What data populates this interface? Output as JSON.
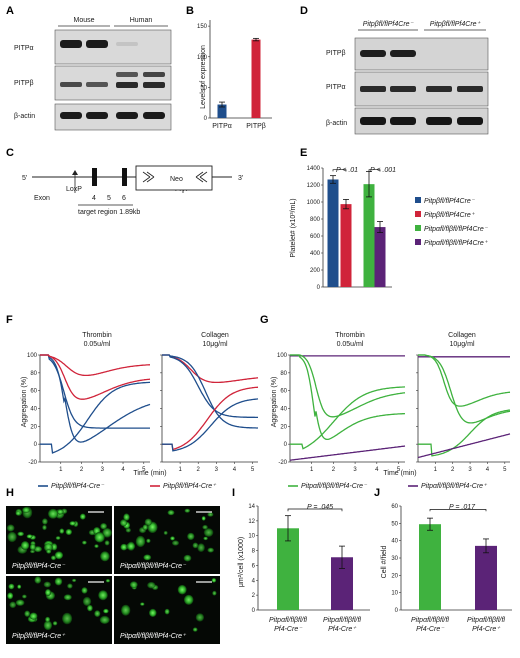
{
  "colors": {
    "wt_blue": "#1f4e8c",
    "ko_red": "#d0243a",
    "pitpa_green": "#3fb23f",
    "dko_purple": "#5b2377",
    "grid": "#9a9a9a",
    "axis": "#333333"
  },
  "panelA": {
    "label": "A",
    "groups": [
      "Mouse",
      "Human"
    ],
    "rows": [
      "PITPα",
      "PITPβ",
      "β-actin"
    ]
  },
  "panelB": {
    "label": "B",
    "chart_data": {
      "type": "bar",
      "categories": [
        "PITPα",
        "PITPβ"
      ],
      "values": [
        22,
        128
      ],
      "errors": [
        4,
        2
      ],
      "ylabel": "Levels of expression",
      "yticks": [
        "0",
        "50",
        "100",
        "150"
      ],
      "ylim": [
        0,
        160
      ]
    }
  },
  "panelC": {
    "label": "C",
    "five_prime": "5'",
    "three_prime": "3'",
    "loxp": "LoxP",
    "frt": "FRT",
    "neo": "Neo",
    "exon": "Exon",
    "exon_numbers": [
      "4",
      "5",
      "6"
    ],
    "target": "target region 1.89kb"
  },
  "panelD": {
    "label": "D",
    "groups": [
      "Pitpβfl/flPf4Cre⁻",
      "Pitpβfl/flPf4Cre⁺"
    ],
    "rows": [
      "PITPβ",
      "PITPα",
      "β-actin"
    ]
  },
  "panelE": {
    "label": "E",
    "chart_data": {
      "type": "bar",
      "categories": [
        "Pitpβfl/flPf4Cre⁻",
        "Pitpβfl/flPf4Cre⁺",
        "Pitpαfl/flβfl/flPf4Cre⁻",
        "Pitpαfl/flβfl/flPf4Cre⁺"
      ],
      "values": [
        1265,
        975,
        1210,
        705
      ],
      "errors": [
        45,
        55,
        150,
        65
      ],
      "ylabel": "Platelet# (x10³/mL)",
      "yticks": [
        "0",
        "200",
        "400",
        "600",
        "800",
        "1000",
        "1200",
        "1400"
      ],
      "ylim": [
        0,
        1400
      ],
      "annotations": [
        "P < .01",
        "P < .001"
      ]
    },
    "legend": [
      "Pitpβfl/flPf4Cre⁻",
      "Pitpβfl/flPf4Cre⁺",
      "Pitpαfl/flβfl/flPf4Cre⁻",
      "Pitpαfl/flβfl/flPf4Cre⁺"
    ]
  },
  "panelF": {
    "label": "F",
    "chart_data": {
      "type": "line",
      "ylabel": "Aggregation (%)",
      "xlabel": "Time (min)",
      "yticks": [
        "100",
        "80",
        "60",
        "40",
        "20",
        "0",
        "-20"
      ],
      "xticks": [
        "1",
        "2",
        "3",
        "4",
        "5"
      ],
      "subplots": [
        {
          "title": "Thrombin",
          "subtitle": "0.05u/ml"
        },
        {
          "title": "Collagen",
          "subtitle": "10μg/ml"
        }
      ],
      "legend": [
        "Pitpβfl/flPf4-Cre⁻",
        "Pitpβfl/flPf4-Cre⁺"
      ]
    }
  },
  "panelG": {
    "label": "G",
    "chart_data": {
      "type": "line",
      "ylabel": "Aggregation (%)",
      "xlabel": "Time (min)",
      "yticks": [
        "100",
        "80",
        "60",
        "40",
        "20",
        "0",
        "-20"
      ],
      "xticks": [
        "1",
        "2",
        "3",
        "4",
        "5"
      ],
      "subplots": [
        {
          "title": "Thrombin",
          "subtitle": "0.05u/ml"
        },
        {
          "title": "Collagen",
          "subtitle": "10μg/ml"
        }
      ],
      "legend": [
        "Pitpαfl/flβfl/flPf4-Cre⁻",
        "Pitpαfl/flβfl/flPf4-Cre⁺"
      ]
    }
  },
  "panelH": {
    "label": "H",
    "captions": [
      "Pitpβfl/flPf4-Cre⁻",
      "Pitpαfl/flβfl/flPf4-Cre⁻",
      "Pitpβfl/flPf4-Cre⁺",
      "Pitpαfl/flβfl/flPf4-Cre⁺"
    ]
  },
  "panelI": {
    "label": "I",
    "chart_data": {
      "type": "bar",
      "categories": [
        "Pitpαfl/flβfl/fl Pf4-Cre⁻",
        "Pitpαfl/flβfl/fl Pf4-Cre⁺"
      ],
      "values": [
        11,
        7.1
      ],
      "errors": [
        1.7,
        1.5
      ],
      "ylabel": "μm²/cell (x1000)",
      "yticks": [
        "0",
        "2",
        "4",
        "6",
        "8",
        "10",
        "12",
        "14"
      ],
      "ylim": [
        0,
        14
      ],
      "annotation": "P = .045"
    }
  },
  "panelJ": {
    "label": "J",
    "chart_data": {
      "type": "bar",
      "categories": [
        "Pitpαfl/flβfl/fl Pf4-Cre⁻",
        "Pitpαfl/flβfl/fl Pf4-Cre⁺"
      ],
      "values": [
        49.5,
        37
      ],
      "errors": [
        3.5,
        4
      ],
      "ylabel": "Cell #/field",
      "yticks": [
        "0",
        "10",
        "20",
        "30",
        "40",
        "50",
        "60"
      ],
      "ylim": [
        0,
        60
      ],
      "annotation": "P = .017"
    }
  }
}
